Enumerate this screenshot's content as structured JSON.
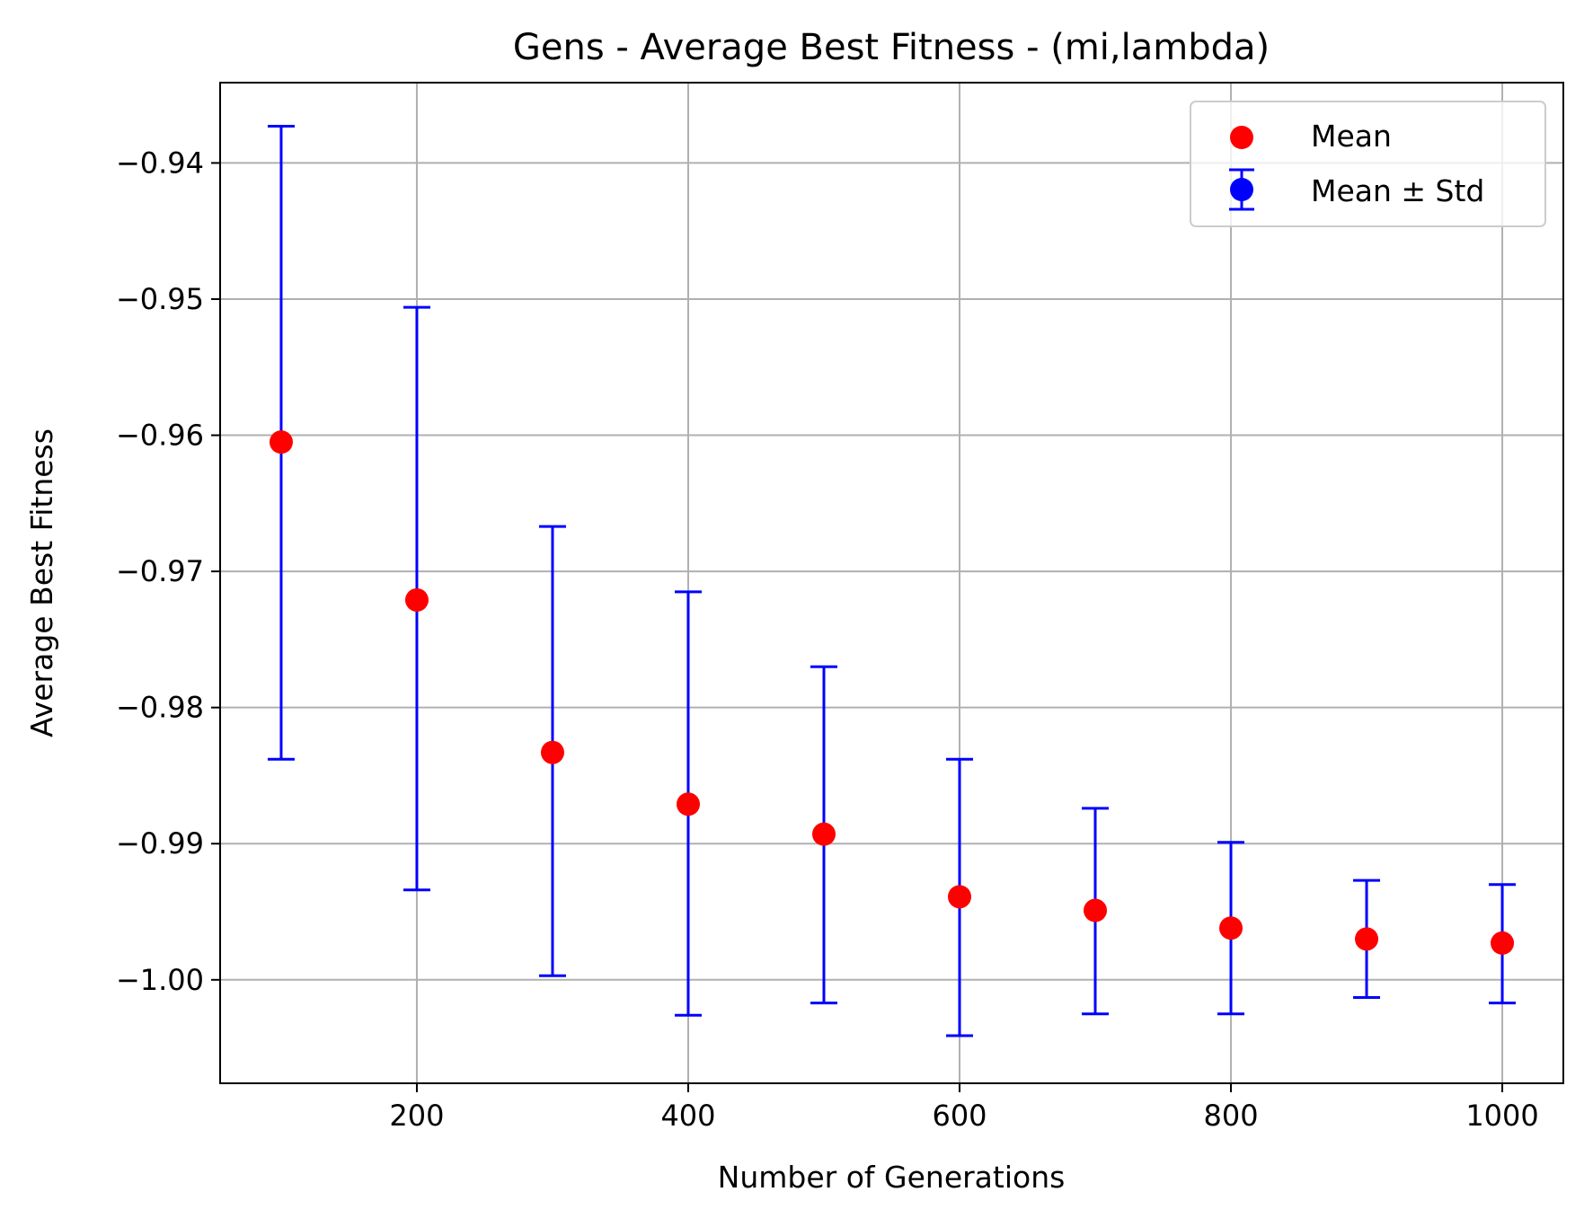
{
  "chart_data": {
    "type": "scatter",
    "title": "Gens - Average Best Fitness - (mi,lambda)",
    "xlabel": "Number of Generations",
    "ylabel": "Average Best Fitness",
    "xlim": [
      55,
      1045
    ],
    "ylim": [
      -1.0076,
      -0.9341
    ],
    "grid": true,
    "legend_position": "top-right",
    "x_ticks": [
      200,
      400,
      600,
      800,
      1000
    ],
    "x_tick_labels": [
      "200",
      "400",
      "600",
      "800",
      "1000"
    ],
    "y_ticks": [
      -0.94,
      -0.95,
      -0.96,
      -0.97,
      -0.98,
      -0.99,
      -1.0
    ],
    "y_tick_labels": [
      "−0.94",
      "−0.95",
      "−0.96",
      "−0.97",
      "−0.98",
      "−0.99",
      "−1.00"
    ],
    "x": [
      100,
      200,
      300,
      400,
      500,
      600,
      700,
      800,
      900,
      1000
    ],
    "series": [
      {
        "name": "Mean",
        "marker": "circle",
        "color": "#ff0000",
        "values": [
          -0.9605,
          -0.9721,
          -0.9833,
          -0.9871,
          -0.9893,
          -0.9939,
          -0.9949,
          -0.9962,
          -0.997,
          -0.9973
        ]
      },
      {
        "name": "Mean ± Std",
        "marker": "errorbar",
        "color": "#0000ff",
        "values": [
          -0.9605,
          -0.9721,
          -0.9833,
          -0.9871,
          -0.9893,
          -0.9939,
          -0.9949,
          -0.9962,
          -0.997,
          -0.9973
        ],
        "lower": [
          -0.9838,
          -0.9934,
          -0.9997,
          -1.0026,
          -1.0017,
          -1.0041,
          -1.0025,
          -1.0025,
          -1.0013,
          -1.0017
        ],
        "upper": [
          -0.9373,
          -0.9506,
          -0.9667,
          -0.9715,
          -0.977,
          -0.9838,
          -0.9874,
          -0.9899,
          -0.9927,
          -0.993
        ]
      }
    ]
  },
  "legend": {
    "mean_label": "Mean",
    "std_label": "Mean ± Std"
  }
}
